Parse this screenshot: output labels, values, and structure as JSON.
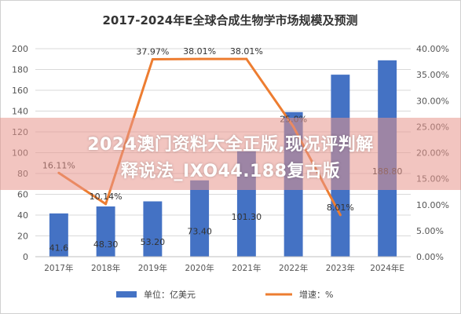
{
  "chart_data": {
    "type": "bar+line",
    "title": "2017-2024年E全球合成生物学市场规模及预测",
    "categories": [
      "2017年",
      "2018年",
      "2019年",
      "2020年",
      "2021年",
      "2022年",
      "2023年",
      "2024年E"
    ],
    "series": [
      {
        "name": "单位：亿美元",
        "type": "bar",
        "axis": "left",
        "values": [
          41.6,
          48.3,
          53.2,
          73.4,
          101.3,
          139.0,
          175.0,
          188.8
        ],
        "labels": [
          "41.6",
          "48.30",
          "53.20",
          "73.40",
          "101.30",
          "",
          "",
          "188.80"
        ],
        "color": "#4472c4"
      },
      {
        "name": "增速：%",
        "type": "line",
        "axis": "right",
        "values": [
          16.11,
          10.14,
          37.97,
          38.01,
          38.01,
          25.0,
          8.01,
          null
        ],
        "labels": [
          "16.11%",
          "10.14%",
          "37.97%",
          "38.01%",
          "38.01%",
          "25.0%",
          "8.01%",
          ""
        ],
        "color": "#ed7d31"
      }
    ],
    "y_left": {
      "min": 0,
      "max": 200,
      "ticks": [
        "0",
        "20",
        "40",
        "60",
        "80",
        "100",
        "120",
        "140",
        "160",
        "180",
        "200"
      ]
    },
    "y_right": {
      "min": 0,
      "max": 40,
      "ticks": [
        "0.00%",
        "5.00%",
        "10.00%",
        "15.00%",
        "20.00%",
        "25.00%",
        "30.00%",
        "35.00%",
        "40.00%"
      ]
    },
    "grid": true,
    "legend_position": "bottom"
  },
  "watermark": {
    "line1": "2024澳门资料大全正版,现况评判解",
    "line2": "释说法_IXO44.188复古版"
  }
}
